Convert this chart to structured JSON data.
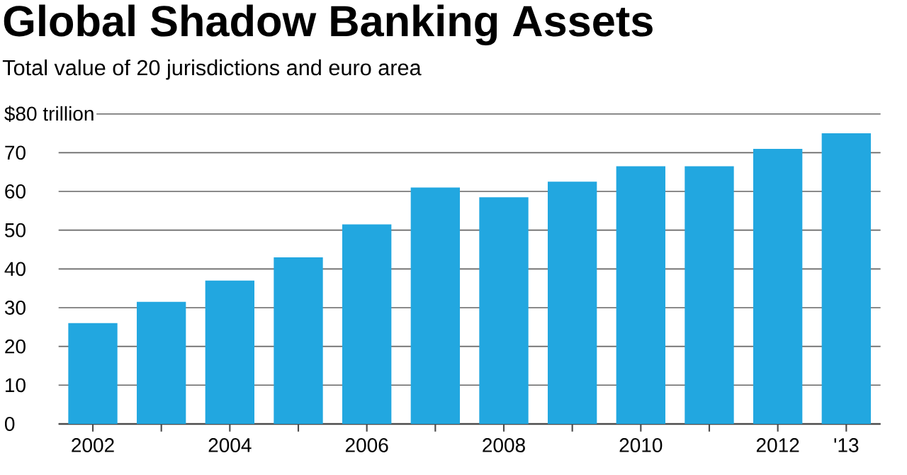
{
  "chart_data": {
    "type": "bar",
    "title": "Global Shadow Banking Assets",
    "subtitle": "Total value of 20 jurisdictions and euro area",
    "categories": [
      "2002",
      null,
      "2004",
      null,
      "2006",
      null,
      "2008",
      null,
      "2010",
      null,
      "2012",
      "'13"
    ],
    "values": [
      26,
      31.5,
      37,
      43,
      51.5,
      61,
      58.5,
      62.5,
      66.5,
      66.5,
      71,
      75
    ],
    "color": "#22a7e0",
    "ylim": [
      0,
      80
    ],
    "yticks": [
      0,
      10,
      20,
      30,
      40,
      50,
      60,
      70,
      {
        "value": 80,
        "label": "$80 trillion"
      }
    ],
    "grid": "y"
  }
}
